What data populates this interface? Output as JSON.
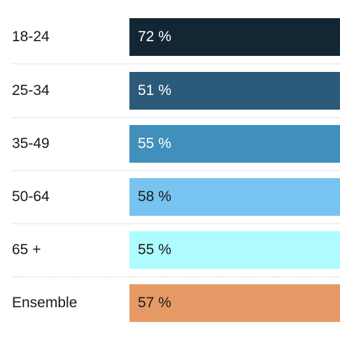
{
  "chart_data": {
    "type": "bar",
    "orientation": "horizontal",
    "categories": [
      "18-24",
      "25-34",
      "35-49",
      "50-64",
      "65 +",
      "Ensemble"
    ],
    "values": [
      72,
      51,
      55,
      58,
      55,
      57
    ],
    "value_labels": [
      "72 %",
      "51 %",
      "55 %",
      "58 %",
      "55 %",
      "57 %"
    ],
    "colors": [
      "#132633",
      "#2c5a7a",
      "#4090bb",
      "#78c4f0",
      "#aefcff",
      "#e59a66"
    ],
    "label_colors": [
      "#ffffff",
      "#ffffff",
      "#ffffff",
      "#1a1a1a",
      "#1a1a1a",
      "#1a1a1a"
    ],
    "grid": false,
    "legend": "none"
  }
}
